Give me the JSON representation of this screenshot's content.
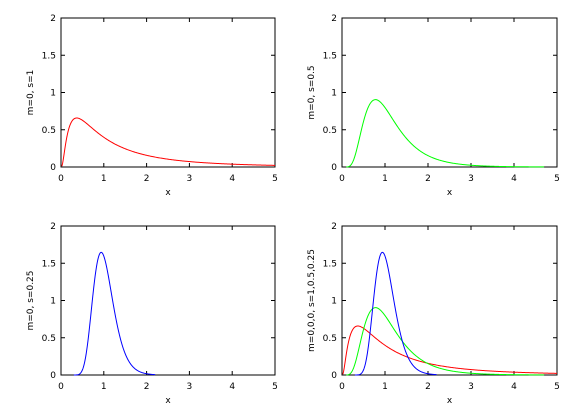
{
  "chart_data": [
    {
      "type": "line",
      "xlabel": "x",
      "ylabel": "m=0, s=1",
      "xlim": [
        0,
        5
      ],
      "ylim": [
        0,
        2
      ],
      "xticks": [
        "0",
        "1",
        "2",
        "3",
        "4",
        "5"
      ],
      "yticks": [
        "0",
        "0.5",
        "1",
        "1.5",
        "2"
      ],
      "grid": false,
      "series": [
        {
          "color": "#ff0000",
          "m": 0,
          "s": 1,
          "x": [
            0.1,
            0.2,
            0.3,
            0.4,
            0.5,
            0.75,
            1,
            1.5,
            2,
            2.5,
            3,
            4,
            5
          ],
          "y": [
            0.28,
            0.55,
            0.64,
            0.66,
            0.63,
            0.53,
            0.4,
            0.25,
            0.16,
            0.11,
            0.07,
            0.04,
            0.02
          ]
        }
      ]
    },
    {
      "type": "line",
      "xlabel": "x",
      "ylabel": "m=0, s=0.5",
      "xlim": [
        0,
        5
      ],
      "ylim": [
        0,
        2
      ],
      "xticks": [
        "0",
        "1",
        "2",
        "3",
        "4",
        "5"
      ],
      "yticks": [
        "0",
        "0.5",
        "1",
        "1.5",
        "2"
      ],
      "grid": false,
      "series": [
        {
          "color": "#00ff00",
          "m": 0,
          "s": 0.5,
          "x": [
            0.2,
            0.4,
            0.6,
            0.78,
            1,
            1.5,
            2,
            2.5,
            3,
            4,
            4.7
          ],
          "y": [
            0.03,
            0.4,
            0.82,
            0.9,
            0.8,
            0.4,
            0.18,
            0.08,
            0.03,
            0.01,
            0.0
          ]
        }
      ]
    },
    {
      "type": "line",
      "xlabel": "x",
      "ylabel": "m=0, s=0.25",
      "xlim": [
        0,
        5
      ],
      "ylim": [
        0,
        2
      ],
      "xticks": [
        "0",
        "1",
        "2",
        "3",
        "4",
        "5"
      ],
      "yticks": [
        "0",
        "0.5",
        "1",
        "1.5",
        "2"
      ],
      "grid": false,
      "series": [
        {
          "color": "#0000ff",
          "m": 0,
          "s": 0.25,
          "x": [
            0.4,
            0.6,
            0.8,
            0.94,
            1.1,
            1.3,
            1.6,
            2,
            2.2
          ],
          "y": [
            0.02,
            0.45,
            1.38,
            1.65,
            1.45,
            0.85,
            0.25,
            0.03,
            0.0
          ]
        }
      ]
    },
    {
      "type": "line",
      "xlabel": "x",
      "ylabel": "m=0,0,0, s=1,0.5,0.25",
      "xlim": [
        0,
        5
      ],
      "ylim": [
        0,
        2
      ],
      "xticks": [
        "0",
        "1",
        "2",
        "3",
        "4",
        "5"
      ],
      "yticks": [
        "0",
        "0.5",
        "1",
        "1.5",
        "2"
      ],
      "grid": false,
      "series": [
        {
          "color": "#ff0000",
          "m": 0,
          "s": 1,
          "x": [
            0.1,
            0.2,
            0.3,
            0.4,
            0.5,
            0.75,
            1,
            1.5,
            2,
            2.5,
            3,
            4,
            5
          ],
          "y": [
            0.28,
            0.55,
            0.64,
            0.66,
            0.63,
            0.53,
            0.4,
            0.25,
            0.16,
            0.11,
            0.07,
            0.04,
            0.02
          ]
        },
        {
          "color": "#00ff00",
          "m": 0,
          "s": 0.5,
          "x": [
            0.2,
            0.4,
            0.6,
            0.78,
            1,
            1.5,
            2,
            2.5,
            3,
            4,
            4.7
          ],
          "y": [
            0.03,
            0.4,
            0.82,
            0.9,
            0.8,
            0.4,
            0.18,
            0.08,
            0.03,
            0.01,
            0.0
          ]
        },
        {
          "color": "#0000ff",
          "m": 0,
          "s": 0.25,
          "x": [
            0.4,
            0.6,
            0.8,
            0.94,
            1.1,
            1.3,
            1.6,
            2,
            2.2
          ],
          "y": [
            0.02,
            0.45,
            1.38,
            1.65,
            1.45,
            0.85,
            0.25,
            0.03,
            0.0
          ]
        }
      ]
    }
  ]
}
